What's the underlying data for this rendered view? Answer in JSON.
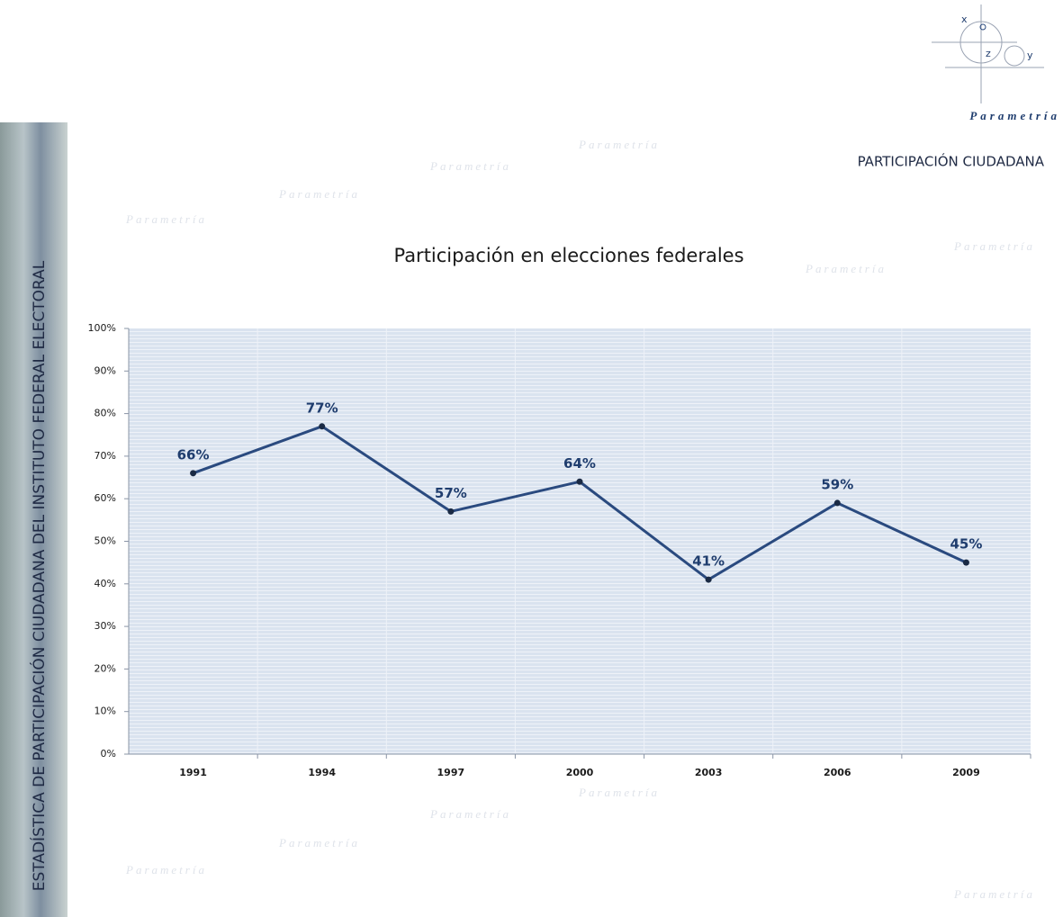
{
  "header": {
    "section": "PARTICIPACIÓN CIUDADANA",
    "side_title": "ESTADÍSTICA DE PARTICIPACIÓN CIUDADANA DEL INSTITUTO FEDERAL ELECTORAL"
  },
  "logo": {
    "brand": "Parametría",
    "x": "x",
    "z": "z",
    "y": "y"
  },
  "chart_data": {
    "type": "line",
    "title": "Participación en elecciones federales",
    "categories": [
      "1991",
      "1994",
      "1997",
      "2000",
      "2003",
      "2006",
      "2009"
    ],
    "values": [
      66,
      77,
      57,
      64,
      41,
      59,
      45
    ],
    "value_labels": [
      "66%",
      "77%",
      "57%",
      "64%",
      "41%",
      "59%",
      "45%"
    ],
    "color": "#2a4a7f",
    "ylim": [
      0,
      100
    ],
    "yticks": [
      {
        "value": 0,
        "label": "0%"
      },
      {
        "value": 10,
        "label": "10%"
      },
      {
        "value": 20,
        "label": "20%"
      },
      {
        "value": 30,
        "label": "30%"
      },
      {
        "value": 40,
        "label": "40%"
      },
      {
        "value": 50,
        "label": "50%"
      },
      {
        "value": 60,
        "label": "60%"
      },
      {
        "value": 70,
        "label": "70%"
      },
      {
        "value": 80,
        "label": "80%"
      },
      {
        "value": 90,
        "label": "90%"
      },
      {
        "value": 100,
        "label": "100%"
      }
    ]
  }
}
